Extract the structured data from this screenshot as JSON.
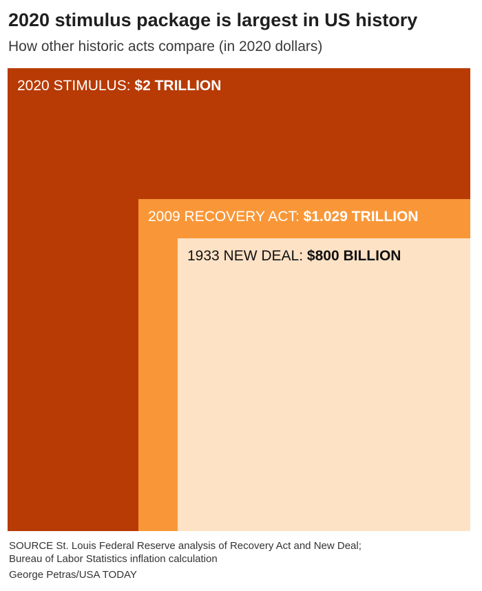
{
  "title": "2020 stimulus package is largest in US history",
  "subtitle": "How other historic acts compare (in 2020 dollars)",
  "chart_data": {
    "type": "area",
    "unit": "billion 2020 dollars",
    "series": [
      {
        "label": "2020 STIMULUS:",
        "amount_label": "$2 TRILLION",
        "value": 2000,
        "color": "#b83a04",
        "text_color": "#ffffff"
      },
      {
        "label": "2009 RECOVERY ACT:",
        "amount_label": "$1.029 TRILLION",
        "value": 1029,
        "color": "#f99738",
        "text_color": "#ffffff"
      },
      {
        "label": "1933 NEW DEAL:",
        "amount_label": "$800 BILLION",
        "value": 800,
        "color": "#fde2c6",
        "text_color": "#111111"
      }
    ]
  },
  "source_line1": "SOURCE St. Louis Federal Reserve analysis of Recovery Act and New Deal;",
  "source_line2": "Bureau of Labor Statistics inflation calculation",
  "credit": "George Petras/USA TODAY"
}
